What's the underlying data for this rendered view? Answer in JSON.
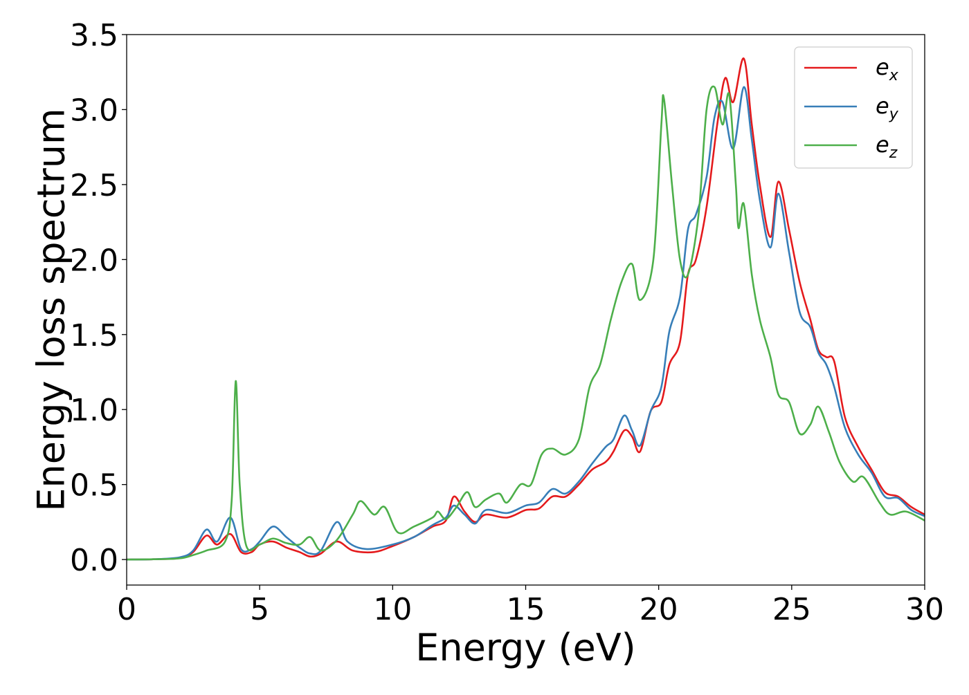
{
  "chart_data": {
    "type": "line",
    "title": "",
    "xlabel": "Energy (eV)",
    "ylabel": "Energy loss spectrum",
    "xlim": [
      0,
      30
    ],
    "ylim": [
      -0.17,
      3.5
    ],
    "xticks": [
      0,
      5,
      10,
      15,
      20,
      25,
      30
    ],
    "yticks": [
      0.0,
      0.5,
      1.0,
      1.5,
      2.0,
      2.5,
      3.0,
      3.5
    ],
    "xtick_labels": [
      "0",
      "5",
      "10",
      "15",
      "20",
      "25",
      "30"
    ],
    "ytick_labels": [
      "0.0",
      "0.5",
      "1.0",
      "1.5",
      "2.0",
      "2.5",
      "3.0",
      "3.5"
    ],
    "grid": false,
    "legend_position": "top-right",
    "series": [
      {
        "name": "e_x",
        "legend_base": "e",
        "legend_sub": "x",
        "color": "#e41a1c",
        "points": [
          [
            0,
            0
          ],
          [
            1,
            0.002
          ],
          [
            2,
            0.01
          ],
          [
            2.5,
            0.05
          ],
          [
            3,
            0.16
          ],
          [
            3.4,
            0.1
          ],
          [
            3.9,
            0.17
          ],
          [
            4.3,
            0.05
          ],
          [
            4.7,
            0.05
          ],
          [
            5,
            0.1
          ],
          [
            5.5,
            0.12
          ],
          [
            6,
            0.08
          ],
          [
            6.5,
            0.05
          ],
          [
            6.9,
            0.02
          ],
          [
            7.3,
            0.04
          ],
          [
            7.9,
            0.12
          ],
          [
            8.5,
            0.06
          ],
          [
            9.3,
            0.05
          ],
          [
            10,
            0.09
          ],
          [
            10.8,
            0.15
          ],
          [
            11.5,
            0.22
          ],
          [
            12,
            0.26
          ],
          [
            12.3,
            0.42
          ],
          [
            12.7,
            0.32
          ],
          [
            13.1,
            0.25
          ],
          [
            13.5,
            0.3
          ],
          [
            14.3,
            0.28
          ],
          [
            15,
            0.33
          ],
          [
            15.5,
            0.34
          ],
          [
            16,
            0.42
          ],
          [
            16.5,
            0.42
          ],
          [
            17,
            0.5
          ],
          [
            17.5,
            0.6
          ],
          [
            18,
            0.65
          ],
          [
            18.3,
            0.72
          ],
          [
            18.7,
            0.86
          ],
          [
            19,
            0.82
          ],
          [
            19.3,
            0.72
          ],
          [
            19.7,
            0.99
          ],
          [
            20.1,
            1.05
          ],
          [
            20.4,
            1.3
          ],
          [
            20.8,
            1.45
          ],
          [
            21.1,
            1.9
          ],
          [
            21.4,
            2.0
          ],
          [
            21.8,
            2.35
          ],
          [
            22.2,
            2.9
          ],
          [
            22.5,
            3.21
          ],
          [
            22.8,
            3.05
          ],
          [
            23.2,
            3.34
          ],
          [
            23.5,
            2.9
          ],
          [
            23.8,
            2.5
          ],
          [
            24.2,
            2.15
          ],
          [
            24.5,
            2.52
          ],
          [
            24.9,
            2.2
          ],
          [
            25.3,
            1.85
          ],
          [
            25.7,
            1.6
          ],
          [
            26,
            1.4
          ],
          [
            26.3,
            1.35
          ],
          [
            26.6,
            1.32
          ],
          [
            27,
            0.95
          ],
          [
            27.5,
            0.75
          ],
          [
            28,
            0.6
          ],
          [
            28.5,
            0.45
          ],
          [
            29,
            0.42
          ],
          [
            29.5,
            0.35
          ],
          [
            30,
            0.3
          ]
        ]
      },
      {
        "name": "e_y",
        "legend_base": "e",
        "legend_sub": "y",
        "color": "#377eb8",
        "points": [
          [
            0,
            0
          ],
          [
            1,
            0.002
          ],
          [
            2,
            0.015
          ],
          [
            2.5,
            0.06
          ],
          [
            3,
            0.2
          ],
          [
            3.4,
            0.12
          ],
          [
            3.9,
            0.28
          ],
          [
            4.3,
            0.07
          ],
          [
            4.7,
            0.07
          ],
          [
            5,
            0.12
          ],
          [
            5.5,
            0.22
          ],
          [
            6,
            0.15
          ],
          [
            6.5,
            0.08
          ],
          [
            6.9,
            0.04
          ],
          [
            7.3,
            0.06
          ],
          [
            7.9,
            0.25
          ],
          [
            8.3,
            0.12
          ],
          [
            9,
            0.07
          ],
          [
            10,
            0.1
          ],
          [
            10.8,
            0.15
          ],
          [
            11.5,
            0.23
          ],
          [
            12,
            0.28
          ],
          [
            12.3,
            0.36
          ],
          [
            12.7,
            0.3
          ],
          [
            13.1,
            0.24
          ],
          [
            13.5,
            0.33
          ],
          [
            14.3,
            0.31
          ],
          [
            15,
            0.36
          ],
          [
            15.5,
            0.38
          ],
          [
            16,
            0.47
          ],
          [
            16.5,
            0.44
          ],
          [
            17,
            0.52
          ],
          [
            17.5,
            0.64
          ],
          [
            18,
            0.75
          ],
          [
            18.3,
            0.8
          ],
          [
            18.7,
            0.96
          ],
          [
            19,
            0.86
          ],
          [
            19.3,
            0.76
          ],
          [
            19.7,
            0.99
          ],
          [
            20.1,
            1.15
          ],
          [
            20.4,
            1.52
          ],
          [
            20.8,
            1.75
          ],
          [
            21.1,
            2.2
          ],
          [
            21.4,
            2.3
          ],
          [
            21.8,
            2.55
          ],
          [
            22.1,
            2.95
          ],
          [
            22.4,
            3.05
          ],
          [
            22.8,
            2.74
          ],
          [
            23.2,
            3.15
          ],
          [
            23.5,
            2.8
          ],
          [
            23.8,
            2.4
          ],
          [
            24.2,
            2.08
          ],
          [
            24.5,
            2.44
          ],
          [
            24.9,
            2.05
          ],
          [
            25.3,
            1.65
          ],
          [
            25.7,
            1.55
          ],
          [
            26,
            1.38
          ],
          [
            26.3,
            1.3
          ],
          [
            26.6,
            1.15
          ],
          [
            27,
            0.88
          ],
          [
            27.5,
            0.7
          ],
          [
            28,
            0.58
          ],
          [
            28.5,
            0.42
          ],
          [
            29,
            0.41
          ],
          [
            29.5,
            0.33
          ],
          [
            30,
            0.29
          ]
        ]
      },
      {
        "name": "e_z",
        "legend_base": "e",
        "legend_sub": "z",
        "color": "#4daf4a",
        "points": [
          [
            0,
            0
          ],
          [
            1,
            0.002
          ],
          [
            2,
            0.008
          ],
          [
            2.5,
            0.03
          ],
          [
            3,
            0.06
          ],
          [
            3.7,
            0.12
          ],
          [
            3.95,
            0.4
          ],
          [
            4.1,
            1.19
          ],
          [
            4.25,
            0.5
          ],
          [
            4.5,
            0.09
          ],
          [
            5,
            0.1
          ],
          [
            5.5,
            0.14
          ],
          [
            6,
            0.11
          ],
          [
            6.5,
            0.1
          ],
          [
            6.9,
            0.15
          ],
          [
            7.3,
            0.06
          ],
          [
            7.9,
            0.13
          ],
          [
            8.5,
            0.3
          ],
          [
            8.8,
            0.39
          ],
          [
            9.3,
            0.3
          ],
          [
            9.7,
            0.35
          ],
          [
            10.2,
            0.18
          ],
          [
            10.8,
            0.22
          ],
          [
            11.5,
            0.28
          ],
          [
            11.7,
            0.32
          ],
          [
            12,
            0.27
          ],
          [
            12.4,
            0.35
          ],
          [
            12.8,
            0.45
          ],
          [
            13.1,
            0.35
          ],
          [
            13.5,
            0.4
          ],
          [
            14,
            0.44
          ],
          [
            14.3,
            0.38
          ],
          [
            14.8,
            0.5
          ],
          [
            15.2,
            0.5
          ],
          [
            15.6,
            0.7
          ],
          [
            16,
            0.74
          ],
          [
            16.5,
            0.7
          ],
          [
            17,
            0.8
          ],
          [
            17.4,
            1.15
          ],
          [
            17.8,
            1.3
          ],
          [
            18.2,
            1.6
          ],
          [
            18.6,
            1.85
          ],
          [
            19,
            1.97
          ],
          [
            19.3,
            1.73
          ],
          [
            19.8,
            2.0
          ],
          [
            20.1,
            2.9
          ],
          [
            20.2,
            3.07
          ],
          [
            20.5,
            2.5
          ],
          [
            20.8,
            2.0
          ],
          [
            21.1,
            1.9
          ],
          [
            21.5,
            2.3
          ],
          [
            21.8,
            3.0
          ],
          [
            22.1,
            3.15
          ],
          [
            22.4,
            2.9
          ],
          [
            22.65,
            3.1
          ],
          [
            22.9,
            2.5
          ],
          [
            23,
            2.21
          ],
          [
            23.2,
            2.37
          ],
          [
            23.5,
            1.9
          ],
          [
            23.8,
            1.6
          ],
          [
            24.2,
            1.35
          ],
          [
            24.5,
            1.1
          ],
          [
            24.9,
            1.05
          ],
          [
            25.3,
            0.84
          ],
          [
            25.7,
            0.9
          ],
          [
            26,
            1.02
          ],
          [
            26.4,
            0.85
          ],
          [
            26.8,
            0.65
          ],
          [
            27.3,
            0.52
          ],
          [
            27.7,
            0.55
          ],
          [
            28.3,
            0.38
          ],
          [
            28.7,
            0.3
          ],
          [
            29.3,
            0.32
          ],
          [
            30,
            0.26
          ]
        ]
      }
    ]
  }
}
